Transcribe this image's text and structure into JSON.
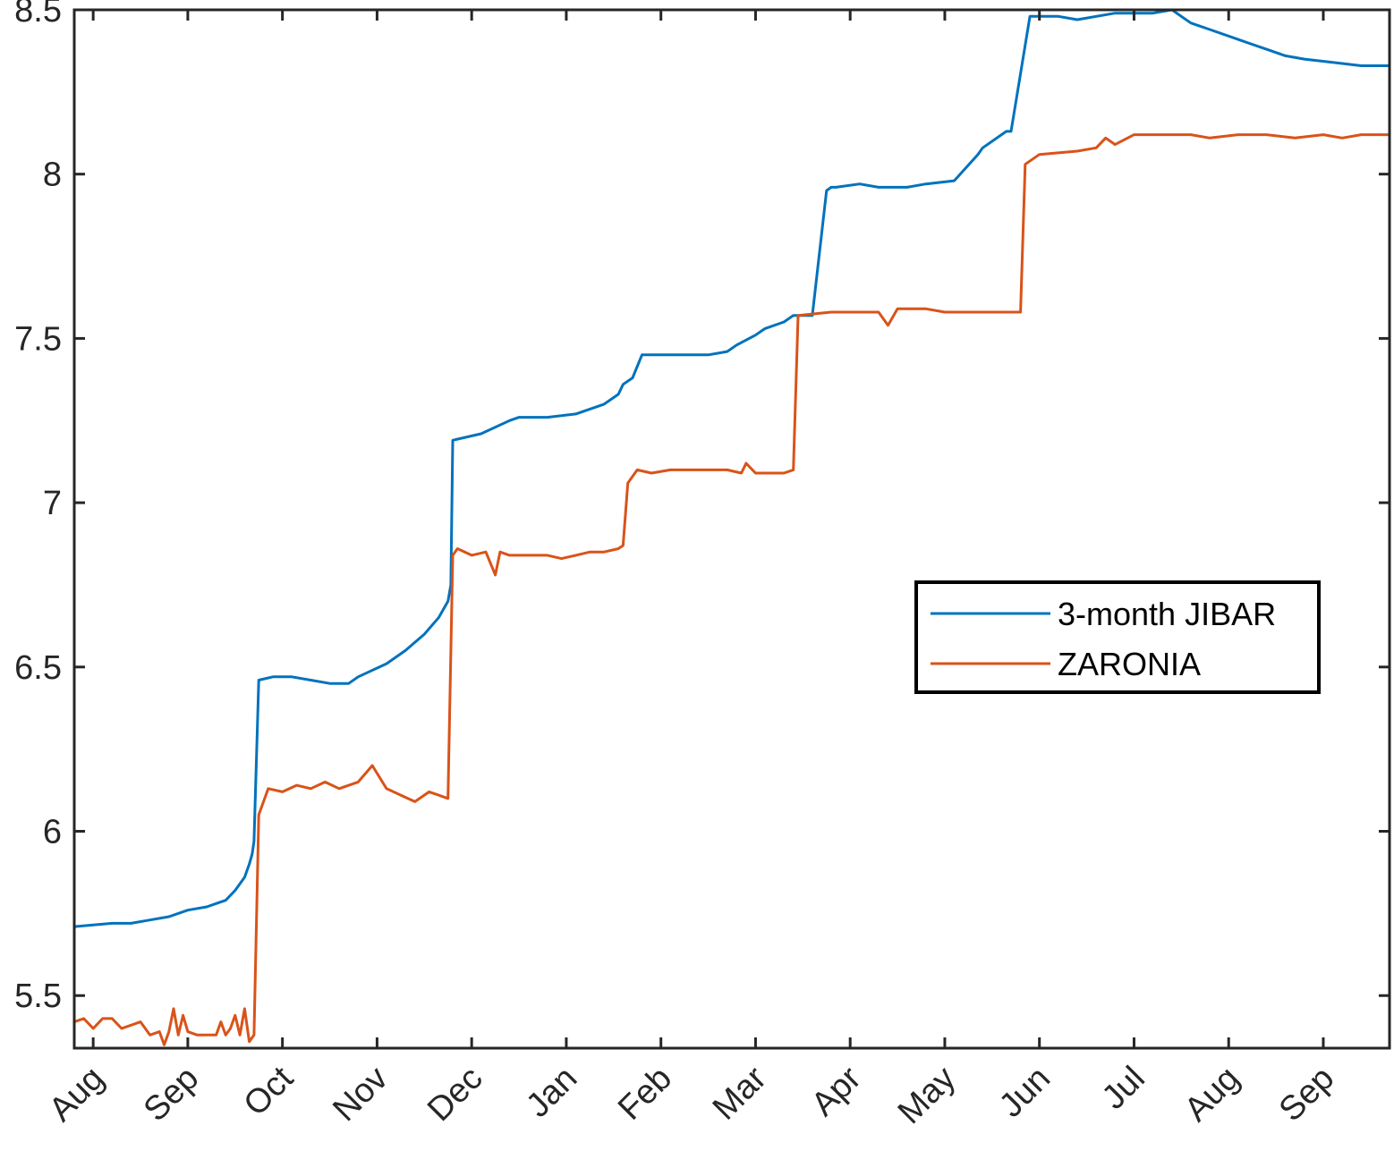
{
  "chart_data": {
    "type": "line",
    "title": "",
    "xlabel": "",
    "ylabel": "",
    "ylim": [
      5.34,
      8.5
    ],
    "yticks": [
      5.5,
      6,
      6.5,
      7,
      7.5,
      8,
      8.5
    ],
    "ytick_labels": [
      "5.5",
      "6",
      "6.5",
      "7",
      "7.5",
      "8",
      "8.5"
    ],
    "xlim": [
      0,
      13.9
    ],
    "xticks": [
      0.2,
      1.2,
      2.2,
      3.2,
      4.2,
      5.2,
      6.2,
      7.2,
      8.2,
      9.2,
      10.2,
      11.2,
      12.2,
      13.2
    ],
    "xtick_labels": [
      "Aug",
      "Sep",
      "Oct",
      "Nov",
      "Dec",
      "Jan",
      "Feb",
      "Mar",
      "Apr",
      "May",
      "Jun",
      "Jul",
      "Aug",
      "Sep"
    ],
    "grid": false,
    "legend_position": "center-right",
    "series": [
      {
        "name": "3-month JIBAR",
        "color": "#0072BD",
        "x": [
          0,
          0.4,
          0.5,
          0.6,
          0.8,
          1.0,
          1.2,
          1.4,
          1.5,
          1.6,
          1.7,
          1.8,
          1.85,
          1.88,
          1.9,
          1.95,
          2.1,
          2.3,
          2.5,
          2.7,
          2.9,
          3.0,
          3.3,
          3.5,
          3.7,
          3.85,
          3.95,
          3.98,
          4.0,
          4.3,
          4.6,
          4.7,
          5.0,
          5.3,
          5.6,
          5.75,
          5.8,
          5.9,
          6.0,
          6.3,
          6.5,
          6.7,
          6.9,
          7.0,
          7.2,
          7.3,
          7.5,
          7.6,
          7.8,
          7.95,
          8.0,
          8.05,
          8.3,
          8.5,
          8.8,
          9.0,
          9.3,
          9.55,
          9.6,
          9.85,
          9.9,
          10.1,
          10.4,
          10.6,
          11.0,
          11.4,
          11.6,
          11.8,
          12.0,
          12.3,
          12.6,
          12.8,
          13.0,
          13.3,
          13.6,
          13.9
        ],
        "y": [
          5.71,
          5.72,
          5.72,
          5.72,
          5.73,
          5.74,
          5.76,
          5.77,
          5.78,
          5.79,
          5.82,
          5.86,
          5.9,
          5.93,
          5.97,
          6.46,
          6.47,
          6.47,
          6.46,
          6.45,
          6.45,
          6.47,
          6.51,
          6.55,
          6.6,
          6.65,
          6.7,
          6.75,
          7.19,
          7.21,
          7.25,
          7.26,
          7.26,
          7.27,
          7.3,
          7.33,
          7.36,
          7.38,
          7.45,
          7.45,
          7.45,
          7.45,
          7.46,
          7.48,
          7.51,
          7.53,
          7.55,
          7.57,
          7.57,
          7.95,
          7.96,
          7.96,
          7.97,
          7.96,
          7.96,
          7.97,
          7.98,
          8.06,
          8.08,
          8.13,
          8.13,
          8.48,
          8.48,
          8.47,
          8.49,
          8.49,
          8.5,
          8.46,
          8.44,
          8.41,
          8.38,
          8.36,
          8.35,
          8.34,
          8.33,
          8.33
        ]
      },
      {
        "name": "ZARONIA",
        "color": "#D95319",
        "x": [
          0,
          0.1,
          0.2,
          0.3,
          0.4,
          0.5,
          0.6,
          0.7,
          0.8,
          0.9,
          0.95,
          1.0,
          1.05,
          1.1,
          1.15,
          1.2,
          1.3,
          1.4,
          1.5,
          1.55,
          1.6,
          1.65,
          1.7,
          1.75,
          1.8,
          1.85,
          1.9,
          1.95,
          2.05,
          2.2,
          2.35,
          2.5,
          2.65,
          2.8,
          3.0,
          3.15,
          3.3,
          3.45,
          3.6,
          3.75,
          3.85,
          3.95,
          4.0,
          4.05,
          4.2,
          4.35,
          4.45,
          4.5,
          4.6,
          4.8,
          5.0,
          5.15,
          5.3,
          5.45,
          5.6,
          5.75,
          5.8,
          5.85,
          5.95,
          6.1,
          6.3,
          6.5,
          6.7,
          6.9,
          7.05,
          7.1,
          7.2,
          7.5,
          7.6,
          7.65,
          8.0,
          8.3,
          8.5,
          8.6,
          8.7,
          9.0,
          9.2,
          9.4,
          9.55,
          9.8,
          10.0,
          10.05,
          10.2,
          10.6,
          10.8,
          10.9,
          11.0,
          11.2,
          11.5,
          11.8,
          12.0,
          12.3,
          12.6,
          12.9,
          13.2,
          13.4,
          13.6,
          13.9
        ],
        "y": [
          5.42,
          5.43,
          5.4,
          5.43,
          5.43,
          5.4,
          5.41,
          5.42,
          5.38,
          5.39,
          5.35,
          5.39,
          5.46,
          5.38,
          5.44,
          5.39,
          5.38,
          5.38,
          5.38,
          5.42,
          5.38,
          5.4,
          5.44,
          5.38,
          5.46,
          5.36,
          5.38,
          6.05,
          6.13,
          6.12,
          6.14,
          6.13,
          6.15,
          6.13,
          6.15,
          6.2,
          6.13,
          6.11,
          6.09,
          6.12,
          6.11,
          6.1,
          6.84,
          6.86,
          6.84,
          6.85,
          6.78,
          6.85,
          6.84,
          6.84,
          6.84,
          6.83,
          6.84,
          6.85,
          6.85,
          6.86,
          6.87,
          7.06,
          7.1,
          7.09,
          7.1,
          7.1,
          7.1,
          7.1,
          7.09,
          7.12,
          7.09,
          7.09,
          7.1,
          7.57,
          7.58,
          7.58,
          7.58,
          7.54,
          7.59,
          7.59,
          7.58,
          7.58,
          7.58,
          7.58,
          7.58,
          8.03,
          8.06,
          8.07,
          8.08,
          8.11,
          8.09,
          8.12,
          8.12,
          8.12,
          8.11,
          8.12,
          8.12,
          8.11,
          8.12,
          8.11,
          8.12,
          8.12
        ]
      }
    ]
  }
}
